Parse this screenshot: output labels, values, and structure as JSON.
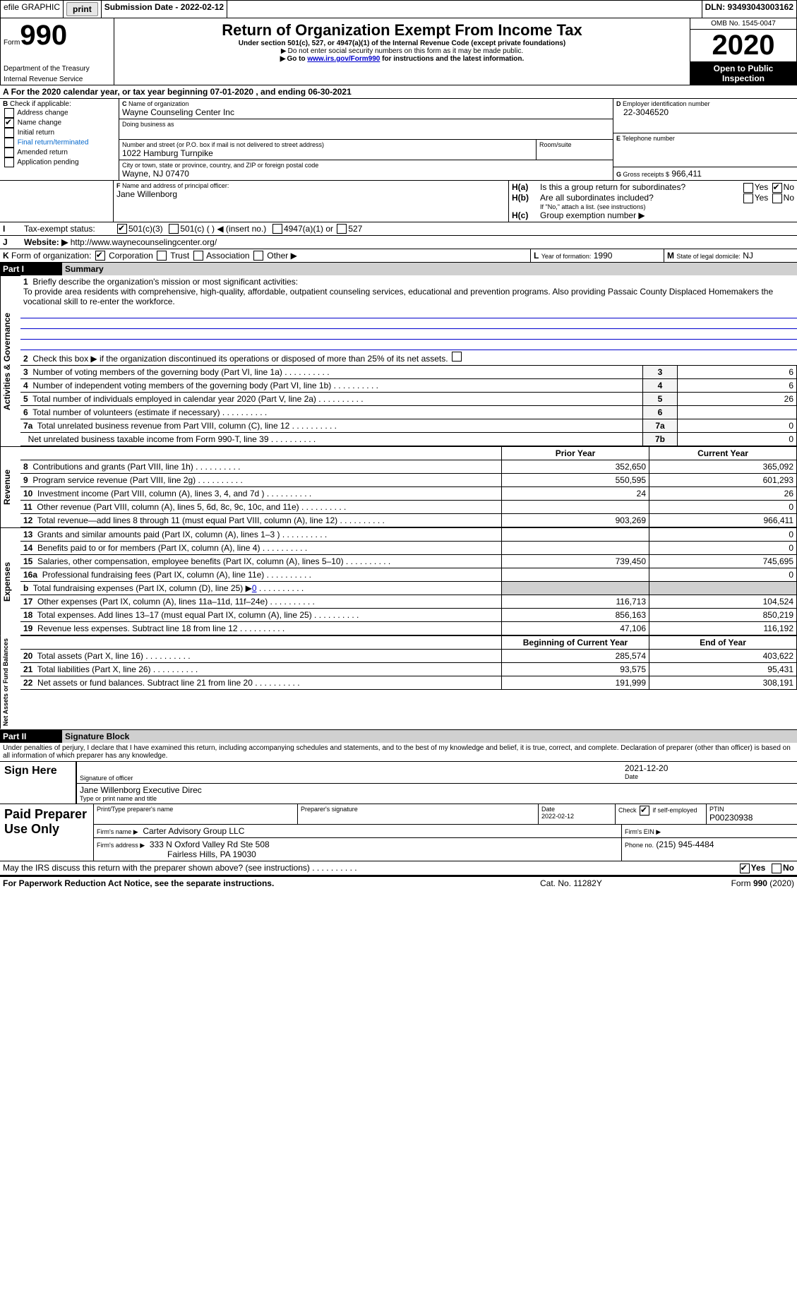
{
  "topbar": {
    "efile_label": "efile GRAPHIC",
    "print_btn": "print",
    "submission_label": "Submission Date - 2022-02-12",
    "dln": "DLN: 93493043003162"
  },
  "header": {
    "form_word": "Form",
    "form_number": "990",
    "dept1": "Department of the Treasury",
    "dept2": "Internal Revenue Service",
    "title": "Return of Organization Exempt From Income Tax",
    "subtitle": "Under section 501(c), 527, or 4947(a)(1) of the Internal Revenue Code (except private foundations)",
    "note1": "Do not enter social security numbers on this form as it may be made public.",
    "note2_a": "Go to ",
    "note2_link": "www.irs.gov/Form990",
    "note2_b": " for instructions and the latest information.",
    "omb": "OMB No. 1545-0047",
    "year": "2020",
    "open_line1": "Open to Public",
    "open_line2": "Inspection"
  },
  "periodA": "For the 2020 calendar year, or tax year beginning 07-01-2020   , and ending 06-30-2021",
  "boxB": {
    "label": "Check if applicable:",
    "addr_change": "Address change",
    "name_change": "Name change",
    "initial": "Initial return",
    "final": "Final return/terminated",
    "amended": "Amended return",
    "app_pending": "Application pending",
    "name_change_checked": true
  },
  "boxC": {
    "label": "Name of organization",
    "org_name": "Wayne Counseling Center Inc",
    "dba_label": "Doing business as",
    "addr_label": "Number and street (or P.O. box if mail is not delivered to street address)",
    "room_label": "Room/suite",
    "addr": "1022 Hamburg Turnpike",
    "city_label": "City or town, state or province, country, and ZIP or foreign postal code",
    "city": "Wayne, NJ  07470"
  },
  "boxD": {
    "label": "Employer identification number",
    "ein": "22-3046520"
  },
  "boxE": {
    "label": "Telephone number",
    "phone": ""
  },
  "boxG": {
    "label": "Gross receipts $",
    "amount": "966,411"
  },
  "boxF": {
    "label": "Name and address of principal officer:",
    "name": "Jane Willenborg"
  },
  "boxH": {
    "a_label": "Is this a group return for subordinates?",
    "b_label": "Are all subordinates included?",
    "b_note": "If \"No,\" attach a list. (see instructions)",
    "c_label": "Group exemption number ▶",
    "yes": "Yes",
    "no": "No",
    "a_no_checked": true
  },
  "boxI": {
    "label": "Tax-exempt status:",
    "c3": "501(c)(3)",
    "c_other": "501(c) (  ) ◀ (insert no.)",
    "a1": "4947(a)(1) or",
    "s527": "527",
    "c3_checked": true
  },
  "boxJ": {
    "label": "Website: ▶",
    "url": "http://www.waynecounselingcenter.org/"
  },
  "boxK": {
    "label": "Form of organization:",
    "corp": "Corporation",
    "trust": "Trust",
    "assoc": "Association",
    "other": "Other ▶",
    "corp_checked": true
  },
  "boxL": {
    "label": "Year of formation:",
    "val": "1990"
  },
  "boxM": {
    "label": "State of legal domicile:",
    "val": "NJ"
  },
  "partI": {
    "title": "Part I",
    "name": "Summary",
    "q1": "Briefly describe the organization's mission or most significant activities:",
    "mission": "To provide area residents with comprehensive, high-quality, affordable, outpatient counseling services, educational and prevention programs. Also providing Passaic County Displaced Homemakers the vocational skill to re-enter the workforce.",
    "q2": "Check this box ▶         if the organization discontinued its operations or disposed of more than 25% of its net assets.",
    "side_gov": "Activities & Governance",
    "side_rev": "Revenue",
    "side_exp": "Expenses",
    "side_net": "Net Assets or Fund Balances",
    "col_prior": "Prior Year",
    "col_current": "Current Year",
    "col_begin": "Beginning of Current Year",
    "col_end": "End of Year",
    "rows_gov": [
      {
        "n": "3",
        "t": "Number of voting members of the governing body (Part VI, line 1a)",
        "box": "3",
        "v": "6"
      },
      {
        "n": "4",
        "t": "Number of independent voting members of the governing body (Part VI, line 1b)",
        "box": "4",
        "v": "6"
      },
      {
        "n": "5",
        "t": "Total number of individuals employed in calendar year 2020 (Part V, line 2a)",
        "box": "5",
        "v": "26"
      },
      {
        "n": "6",
        "t": "Total number of volunteers (estimate if necessary)",
        "box": "6",
        "v": ""
      },
      {
        "n": "7a",
        "t": "Total unrelated business revenue from Part VIII, column (C), line 12",
        "box": "7a",
        "v": "0"
      },
      {
        "n": "",
        "t": "Net unrelated business taxable income from Form 990-T, line 39",
        "box": "7b",
        "v": "0"
      }
    ],
    "rows_rev": [
      {
        "n": "8",
        "t": "Contributions and grants (Part VIII, line 1h)",
        "p": "352,650",
        "c": "365,092"
      },
      {
        "n": "9",
        "t": "Program service revenue (Part VIII, line 2g)",
        "p": "550,595",
        "c": "601,293"
      },
      {
        "n": "10",
        "t": "Investment income (Part VIII, column (A), lines 3, 4, and 7d )",
        "p": "24",
        "c": "26"
      },
      {
        "n": "11",
        "t": "Other revenue (Part VIII, column (A), lines 5, 6d, 8c, 9c, 10c, and 11e)",
        "p": "",
        "c": "0"
      },
      {
        "n": "12",
        "t": "Total revenue—add lines 8 through 11 (must equal Part VIII, column (A), line 12)",
        "p": "903,269",
        "c": "966,411"
      }
    ],
    "rows_exp": [
      {
        "n": "13",
        "t": "Grants and similar amounts paid (Part IX, column (A), lines 1–3 )",
        "p": "",
        "c": "0"
      },
      {
        "n": "14",
        "t": "Benefits paid to or for members (Part IX, column (A), line 4)",
        "p": "",
        "c": "0"
      },
      {
        "n": "15",
        "t": "Salaries, other compensation, employee benefits (Part IX, column (A), lines 5–10)",
        "p": "739,450",
        "c": "745,695"
      },
      {
        "n": "16a",
        "t": "Professional fundraising fees (Part IX, column (A), line 11e)",
        "p": "",
        "c": "0"
      },
      {
        "n": "b",
        "t": "Total fundraising expenses (Part IX, column (D), line 25) ▶",
        "link": "0",
        "p": "__SHADE__",
        "c": "__SHADE__"
      },
      {
        "n": "17",
        "t": "Other expenses (Part IX, column (A), lines 11a–11d, 11f–24e)",
        "p": "116,713",
        "c": "104,524"
      },
      {
        "n": "18",
        "t": "Total expenses. Add lines 13–17 (must equal Part IX, column (A), line 25)",
        "p": "856,163",
        "c": "850,219"
      },
      {
        "n": "19",
        "t": "Revenue less expenses. Subtract line 18 from line 12",
        "p": "47,106",
        "c": "116,192"
      }
    ],
    "rows_net": [
      {
        "n": "20",
        "t": "Total assets (Part X, line 16)",
        "p": "285,574",
        "c": "403,622"
      },
      {
        "n": "21",
        "t": "Total liabilities (Part X, line 26)",
        "p": "93,575",
        "c": "95,431"
      },
      {
        "n": "22",
        "t": "Net assets or fund balances. Subtract line 21 from line 20",
        "p": "191,999",
        "c": "308,191"
      }
    ]
  },
  "partII": {
    "title": "Part II",
    "name": "Signature Block",
    "decl": "Under penalties of perjury, I declare that I have examined this return, including accompanying schedules and statements, and to the best of my knowledge and belief, it is true, correct, and complete. Declaration of preparer (other than officer) is based on all information of which preparer has any knowledge.",
    "sign_here": "Sign Here",
    "sig_label": "Signature of officer",
    "date_label": "Date",
    "sig_date": "2021-12-20",
    "officer_name": "Jane Willenborg  Executive Direc",
    "type_label": "Type or print name and title",
    "paid_title": "Paid Preparer Use Only",
    "prep_name_label": "Print/Type preparer's name",
    "prep_sig_label": "Preparer's signature",
    "prep_date_label": "Date",
    "prep_date": "2022-02-12",
    "self_emp_label": "Check        if self-employed",
    "self_emp_checked": true,
    "ptin_label": "PTIN",
    "ptin": "P00230938",
    "firm_name_label": "Firm's name    ▶",
    "firm_name": "Carter Advisory Group LLC",
    "firm_ein_label": "Firm's EIN ▶",
    "firm_addr_label": "Firm's address ▶",
    "firm_addr1": "333 N Oxford Valley Rd Ste 508",
    "firm_addr2": "Fairless Hills, PA  19030",
    "firm_phone_label": "Phone no.",
    "firm_phone": "(215) 945-4484",
    "discuss": "May the IRS discuss this return with the preparer shown above? (see instructions)",
    "discuss_yes_checked": true
  },
  "footer": {
    "pra": "For Paperwork Reduction Act Notice, see the separate instructions.",
    "cat": "Cat. No. 11282Y",
    "form": "Form 990 (2020)"
  },
  "labels": {
    "yes": "Yes",
    "no": "No"
  }
}
